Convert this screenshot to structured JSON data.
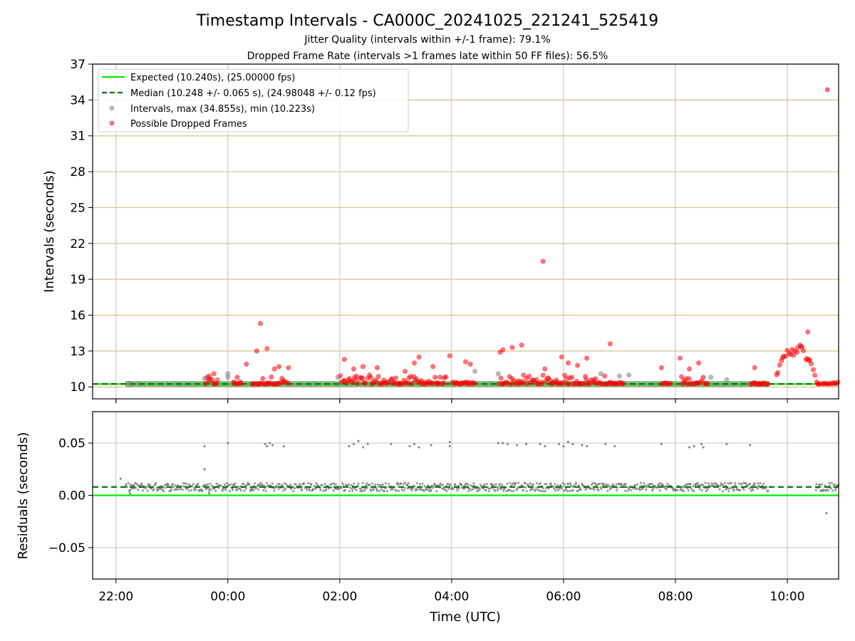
{
  "chart_data": [
    {
      "type": "scatter",
      "title": "Timestamp Intervals - CA000C_20241025_221241_525419",
      "subtitle_1": "Jitter Quality (intervals within +/-1 frame): 79.1%",
      "subtitle_2": "Dropped Frame Rate (intervals >1 frames late within 50 FF files): 56.5%",
      "ylabel": "Intervals (seconds)",
      "xlim": [
        "21:35",
        "10:55"
      ],
      "ylim": [
        9.0,
        37.0
      ],
      "y_ticks": [
        10,
        13,
        16,
        19,
        22,
        25,
        28,
        31,
        34,
        37
      ],
      "x_ticks": [
        "22:00",
        "00:00",
        "02:00",
        "04:00",
        "06:00",
        "08:00",
        "10:00"
      ],
      "grid": true,
      "legend_position": "upper-left",
      "expected_interval": 10.24,
      "median_interval": 10.248,
      "legend": [
        {
          "label": "Expected (10.240s), (25.00000 fps)",
          "style": "line",
          "color": "#00ee00"
        },
        {
          "label": "Median (10.248 +/- 0.065 s), (24.98048 +/- 0.12 fps)",
          "style": "dashed",
          "color": "#007700"
        },
        {
          "label": "Intervals, max (34.855s), min (10.223s)",
          "style": "marker",
          "color": "#808080"
        },
        {
          "label": "Possible Dropped Frames",
          "style": "marker",
          "color": "#ff0000"
        }
      ],
      "dropped_frames_outliers": [
        {
          "x": "23:40",
          "y": 10.9
        },
        {
          "x": "23:45",
          "y": 11.1
        },
        {
          "x": "00:10",
          "y": 10.8
        },
        {
          "x": "00:20",
          "y": 11.9
        },
        {
          "x": "00:31",
          "y": 13.0
        },
        {
          "x": "00:35",
          "y": 15.3
        },
        {
          "x": "00:42",
          "y": 13.2
        },
        {
          "x": "00:50",
          "y": 11.5
        },
        {
          "x": "00:55",
          "y": 11.7
        },
        {
          "x": "01:05",
          "y": 11.6
        },
        {
          "x": "02:05",
          "y": 12.3
        },
        {
          "x": "02:15",
          "y": 11.5
        },
        {
          "x": "02:25",
          "y": 11.7
        },
        {
          "x": "02:40",
          "y": 11.6
        },
        {
          "x": "03:10",
          "y": 11.3
        },
        {
          "x": "03:20",
          "y": 12.0
        },
        {
          "x": "03:25",
          "y": 12.5
        },
        {
          "x": "03:40",
          "y": 11.7
        },
        {
          "x": "03:58",
          "y": 12.6
        },
        {
          "x": "04:15",
          "y": 12.1
        },
        {
          "x": "04:20",
          "y": 11.9
        },
        {
          "x": "04:52",
          "y": 12.9
        },
        {
          "x": "04:55",
          "y": 13.1
        },
        {
          "x": "05:05",
          "y": 13.3
        },
        {
          "x": "05:15",
          "y": 13.5
        },
        {
          "x": "05:38",
          "y": 20.5
        },
        {
          "x": "05:40",
          "y": 11.5
        },
        {
          "x": "05:58",
          "y": 12.5
        },
        {
          "x": "06:05",
          "y": 12.0
        },
        {
          "x": "06:15",
          "y": 11.8
        },
        {
          "x": "06:25",
          "y": 12.4
        },
        {
          "x": "06:50",
          "y": 13.6
        },
        {
          "x": "07:45",
          "y": 11.6
        },
        {
          "x": "08:05",
          "y": 12.4
        },
        {
          "x": "08:15",
          "y": 11.5
        },
        {
          "x": "08:25",
          "y": 12.0
        },
        {
          "x": "09:25",
          "y": 11.6
        },
        {
          "x": "10:22",
          "y": 14.6
        },
        {
          "x": "10:43",
          "y": 34.855
        }
      ],
      "dropped_frames_bands": [
        {
          "from": "23:35",
          "to": "23:50",
          "ymin": 10.24,
          "ymax": 10.8
        },
        {
          "from": "00:05",
          "to": "00:15",
          "ymin": 10.24,
          "ymax": 10.5
        },
        {
          "from": "00:25",
          "to": "00:35",
          "ymin": 10.24,
          "ymax": 10.3
        },
        {
          "from": "00:35",
          "to": "01:05",
          "ymin": 10.24,
          "ymax": 10.9
        },
        {
          "from": "02:00",
          "to": "02:55",
          "ymin": 10.24,
          "ymax": 11.0
        },
        {
          "from": "02:55",
          "to": "03:55",
          "ymin": 10.24,
          "ymax": 10.9
        },
        {
          "from": "04:00",
          "to": "04:25",
          "ymin": 10.24,
          "ymax": 10.4
        },
        {
          "from": "04:50",
          "to": "06:45",
          "ymin": 10.24,
          "ymax": 11.0
        },
        {
          "from": "06:45",
          "to": "07:05",
          "ymin": 10.24,
          "ymax": 10.4
        },
        {
          "from": "07:45",
          "to": "07:55",
          "ymin": 10.24,
          "ymax": 10.4
        },
        {
          "from": "08:05",
          "to": "08:35",
          "ymin": 10.24,
          "ymax": 10.9
        },
        {
          "from": "09:20",
          "to": "09:40",
          "ymin": 10.24,
          "ymax": 10.4
        },
        {
          "from": "09:48",
          "to": "10:30",
          "ymin": 10.9,
          "ymax": 13.8
        },
        {
          "from": "10:30",
          "to": "10:55",
          "ymin": 10.24,
          "ymax": 10.4
        }
      ],
      "interval_outliers": [
        {
          "x": "22:15",
          "y": 10.3
        },
        {
          "x": "23:35",
          "y": 10.7
        },
        {
          "x": "00:00",
          "y": 11.1
        },
        {
          "x": "00:00",
          "y": 10.8
        },
        {
          "x": "01:58",
          "y": 10.8
        },
        {
          "x": "04:25",
          "y": 11.3
        },
        {
          "x": "04:50",
          "y": 11.1
        },
        {
          "x": "06:40",
          "y": 11.1
        },
        {
          "x": "07:00",
          "y": 10.9
        },
        {
          "x": "07:10",
          "y": 11.0
        },
        {
          "x": "08:38",
          "y": 10.8
        },
        {
          "x": "08:55",
          "y": 10.6
        }
      ]
    },
    {
      "type": "scatter",
      "ylabel": "Residuals (seconds)",
      "xlabel": "Time (UTC)",
      "xlim": [
        "21:35",
        "10:55"
      ],
      "ylim": [
        -0.08,
        0.08
      ],
      "y_ticks": [
        0.05,
        0.0,
        -0.05
      ],
      "y_tick_labels": [
        "0.05",
        "0.00",
        "−0.05"
      ],
      "x_ticks": [
        "22:00",
        "00:00",
        "02:00",
        "04:00",
        "06:00",
        "08:00",
        "10:00"
      ],
      "grid": true,
      "expected_residual": 0.0,
      "median_residual": 0.008,
      "residual_band": {
        "from": "22:10",
        "to": "09:40",
        "center": 0.008,
        "spread": 0.004
      },
      "residual_band_2": {
        "from": "10:30",
        "to": "10:55",
        "center": 0.008,
        "spread": 0.004
      },
      "residual_points": [
        {
          "x": "22:05",
          "y": 0.016
        },
        {
          "x": "22:15",
          "y": 0.002
        },
        {
          "x": "23:35",
          "y": 0.047
        },
        {
          "x": "23:35",
          "y": 0.025
        },
        {
          "x": "23:40",
          "y": 0.002
        },
        {
          "x": "00:00",
          "y": 0.05
        },
        {
          "x": "00:40",
          "y": 0.049
        },
        {
          "x": "00:42",
          "y": 0.047
        },
        {
          "x": "00:45",
          "y": 0.05
        },
        {
          "x": "00:48",
          "y": 0.048
        },
        {
          "x": "01:00",
          "y": 0.047
        },
        {
          "x": "02:10",
          "y": 0.047
        },
        {
          "x": "02:15",
          "y": 0.049
        },
        {
          "x": "02:20",
          "y": 0.052
        },
        {
          "x": "02:25",
          "y": 0.046
        },
        {
          "x": "02:30",
          "y": 0.049
        },
        {
          "x": "02:55",
          "y": 0.049
        },
        {
          "x": "03:15",
          "y": 0.047
        },
        {
          "x": "03:20",
          "y": 0.049
        },
        {
          "x": "03:25",
          "y": 0.046
        },
        {
          "x": "03:38",
          "y": 0.048
        },
        {
          "x": "03:58",
          "y": 0.051
        },
        {
          "x": "03:58",
          "y": 0.047
        },
        {
          "x": "04:50",
          "y": 0.05
        },
        {
          "x": "04:55",
          "y": 0.05
        },
        {
          "x": "05:00",
          "y": 0.049
        },
        {
          "x": "05:10",
          "y": 0.048
        },
        {
          "x": "05:20",
          "y": 0.049
        },
        {
          "x": "05:35",
          "y": 0.049
        },
        {
          "x": "05:40",
          "y": 0.047
        },
        {
          "x": "05:55",
          "y": 0.049
        },
        {
          "x": "06:00",
          "y": 0.047
        },
        {
          "x": "06:05",
          "y": 0.051
        },
        {
          "x": "06:10",
          "y": 0.049
        },
        {
          "x": "06:20",
          "y": 0.048
        },
        {
          "x": "06:25",
          "y": 0.047
        },
        {
          "x": "06:45",
          "y": 0.049
        },
        {
          "x": "06:55",
          "y": 0.047
        },
        {
          "x": "07:45",
          "y": 0.049
        },
        {
          "x": "08:15",
          "y": 0.046
        },
        {
          "x": "08:20",
          "y": 0.047
        },
        {
          "x": "08:28",
          "y": 0.049
        },
        {
          "x": "08:30",
          "y": 0.046
        },
        {
          "x": "08:55",
          "y": 0.049
        },
        {
          "x": "09:20",
          "y": 0.048
        },
        {
          "x": "10:42",
          "y": -0.017
        }
      ]
    }
  ]
}
